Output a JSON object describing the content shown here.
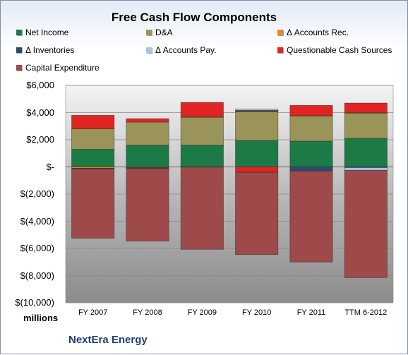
{
  "title": "Free Cash Flow Components",
  "units_label": "millions",
  "company": "NextEra Energy",
  "colors": {
    "Net Income": "#1c7a46",
    "D&A": "#9b9458",
    "Accounts Rec": "#e88a1e",
    "Inventories": "#2d4a72",
    "Accounts Pay": "#a8c4e6",
    "Questionable": "#e02424",
    "CapEx": "#9e4a4a"
  },
  "legend": [
    {
      "label": "Net Income",
      "color_key": "Net Income"
    },
    {
      "label": "D&A",
      "color_key": "D&A"
    },
    {
      "label": "Δ Accounts Rec.",
      "color_key": "Accounts Rec"
    },
    {
      "label": "Δ Inventories",
      "color_key": "Inventories"
    },
    {
      "label": "Δ Accounts Pay.",
      "color_key": "Accounts Pay"
    },
    {
      "label": "Questionable Cash Sources",
      "color_key": "Questionable"
    },
    {
      "label": "Capital Expenditure",
      "color_key": "CapEx"
    }
  ],
  "chart_data": {
    "type": "bar",
    "stacked": true,
    "title": "Free Cash Flow Components",
    "ylabel": "millions",
    "ylim": [
      -10000,
      6000
    ],
    "yticks": [
      6000,
      4000,
      2000,
      0,
      -2000,
      -4000,
      -6000,
      -8000,
      -10000
    ],
    "ytick_labels": [
      "$6,000",
      "$4,000",
      "$2,000",
      "$-",
      "$(2,000)",
      "$(4,000)",
      "$(6,000)",
      "$(8,000)",
      "$(10,000)"
    ],
    "categories": [
      "FY 2007",
      "FY 2008",
      "FY 2009",
      "FY 2010",
      "FY 2011",
      "TTM 6-2012"
    ],
    "grid": true,
    "legend_position": "top",
    "series": [
      {
        "name": "Net Income",
        "color_key": "Net Income",
        "values": [
          1300,
          1600,
          1600,
          1950,
          1900,
          2100
        ]
      },
      {
        "name": "D&A",
        "color_key": "D&A",
        "values": [
          1500,
          1700,
          2050,
          2100,
          1850,
          1850
        ]
      },
      {
        "name": "Δ Accounts Rec.",
        "color_key": "Accounts Rec",
        "values": [
          -100,
          -50,
          50,
          50,
          30,
          50
        ]
      },
      {
        "name": "Δ Inventories",
        "color_key": "Inventories",
        "values": [
          -50,
          -60,
          -20,
          60,
          -300,
          -50
        ]
      },
      {
        "name": "Δ Accounts Pay.",
        "color_key": "Accounts Pay",
        "values": [
          0,
          0,
          0,
          100,
          0,
          -200
        ]
      },
      {
        "name": "Questionable Cash Sources",
        "color_key": "Questionable",
        "values": [
          1000,
          250,
          1050,
          -400,
          750,
          700
        ]
      },
      {
        "name": "Capital Expenditure",
        "color_key": "CapEx",
        "values": [
          -5100,
          -5350,
          -6050,
          -6050,
          -6700,
          -7900
        ]
      }
    ]
  }
}
